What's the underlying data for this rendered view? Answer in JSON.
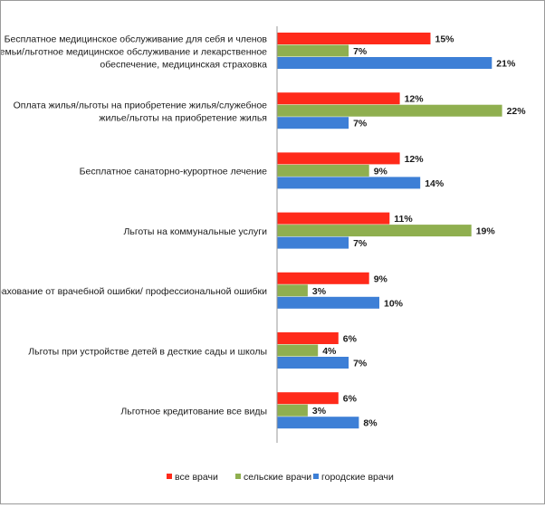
{
  "chart_data": {
    "type": "bar",
    "orientation": "horizontal",
    "categories": [
      [
        "Бесплатное медицинское обслуживание для себя и членов",
        "семьи/льготное медицинское обслуживание  и лекарственное",
        "обеспечение, медицинская страховка"
      ],
      [
        "Оплата жилья/льготы на приобретение жилья/служебное",
        "жилье/льготы на приобретение жилья"
      ],
      [
        "Бесплатное санаторно-курортное лечение"
      ],
      [
        "Льготы на коммунальные услуги"
      ],
      [
        "Страхование от врачебной ошибки/ профессиональной ошибки"
      ],
      [
        "Льготы при устройстве детей в десткие сады и школы"
      ],
      [
        "Льготное кредитование все виды"
      ]
    ],
    "series": [
      {
        "name": "все врачи",
        "color": "#ff2a1a",
        "values": [
          15,
          12,
          12,
          11,
          9,
          6,
          6
        ],
        "labels": [
          "15%",
          "12%",
          "12%",
          "11%",
          "9%",
          "6%",
          "6%"
        ]
      },
      {
        "name": "сельские врачи",
        "color": "#8faf4f",
        "values": [
          7,
          22,
          9,
          19,
          3,
          4,
          3
        ],
        "labels": [
          "7%",
          "22%",
          "9%",
          "19%",
          "3%",
          "4%",
          "3%"
        ]
      },
      {
        "name": "городские врачи",
        "color": "#3d7fd6",
        "values": [
          21,
          7,
          14,
          7,
          10,
          7,
          8
        ],
        "labels": [
          "21%",
          "7%",
          "14%",
          "7%",
          "10%",
          "7%",
          "8%"
        ]
      }
    ],
    "xlim": [
      0,
      22
    ],
    "legend_position": "bottom",
    "grid": false
  }
}
